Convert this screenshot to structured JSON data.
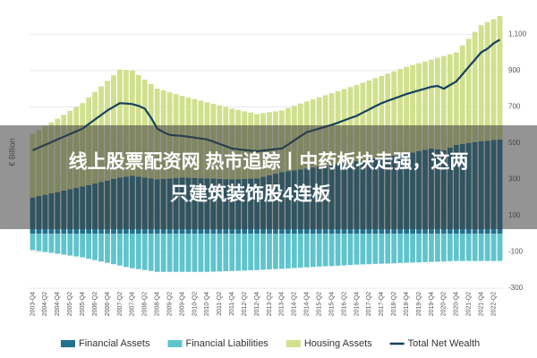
{
  "chart_data": {
    "type": "bar",
    "y_label": "€ Billion",
    "categories": [
      "2003-Q4",
      null,
      "2004-Q2",
      null,
      "2004-Q4",
      null,
      "2005-Q2",
      null,
      "2005-Q4",
      null,
      "2006-Q2",
      null,
      "2006-Q4",
      null,
      "2007-Q2",
      null,
      "2007-Q4",
      null,
      "2008-Q2",
      null,
      "2008-Q4",
      null,
      "2009-Q2",
      null,
      "2009-Q4",
      null,
      "2010-Q2",
      null,
      "2010-Q4",
      null,
      "2011-Q2",
      null,
      "2011-Q4",
      null,
      "2012-Q2",
      null,
      "2012-Q4",
      null,
      "2013-Q2",
      null,
      "2013-Q4",
      null,
      "2014-Q2",
      null,
      "2014-Q4",
      null,
      "2015-Q2",
      null,
      "2015-Q4",
      null,
      "2016-Q2",
      null,
      "2016-Q4",
      null,
      "2017-Q2",
      null,
      "2017-Q4",
      null,
      "2018-Q2",
      null,
      "2018-Q4",
      null,
      "2019-Q2",
      null,
      "2019-Q4",
      null,
      "2020-Q2",
      null,
      "2020-Q4",
      null,
      "2021-Q2",
      null,
      "2021-Q4",
      null,
      "2022-Q2",
      null
    ],
    "series": [
      {
        "name": "Financial Assets",
        "color": "#23718c",
        "stack": "pos",
        "values": [
          200,
          208,
          215,
          223,
          230,
          238,
          245,
          253,
          260,
          268,
          277,
          285,
          293,
          302,
          310,
          315,
          320,
          315,
          310,
          305,
          300,
          303,
          305,
          308,
          310,
          309,
          307,
          306,
          305,
          304,
          303,
          301,
          300,
          301,
          302,
          304,
          305,
          314,
          323,
          331,
          340,
          345,
          350,
          355,
          360,
          365,
          370,
          375,
          380,
          385,
          390,
          395,
          400,
          405,
          410,
          415,
          420,
          425,
          430,
          435,
          440,
          448,
          455,
          463,
          470,
          465,
          460,
          475,
          490,
          495,
          500,
          505,
          510,
          513,
          517,
          520
        ]
      },
      {
        "name": "Financial Liabilities",
        "color": "#5fc4cc",
        "stack": "neg",
        "values": [
          -90,
          -95,
          -100,
          -105,
          -110,
          -115,
          -120,
          -125,
          -130,
          -138,
          -145,
          -153,
          -160,
          -168,
          -175,
          -183,
          -190,
          -195,
          -200,
          -205,
          -210,
          -210,
          -210,
          -210,
          -210,
          -210,
          -210,
          -210,
          -210,
          -209,
          -208,
          -206,
          -205,
          -204,
          -203,
          -201,
          -200,
          -198,
          -196,
          -194,
          -193,
          -191,
          -189,
          -187,
          -185,
          -183,
          -181,
          -179,
          -178,
          -176,
          -174,
          -172,
          -170,
          -169,
          -168,
          -166,
          -165,
          -164,
          -163,
          -161,
          -160,
          -159,
          -158,
          -156,
          -155,
          -154,
          -153,
          -151,
          -150,
          -150,
          -150,
          -150,
          -150,
          -150,
          -150,
          -150
        ]
      },
      {
        "name": "Housing Assets",
        "color": "#d0e08c",
        "stack": "pos",
        "values": [
          350,
          363,
          378,
          391,
          405,
          418,
          433,
          446,
          460,
          483,
          505,
          528,
          550,
          572,
          595,
          588,
          580,
          560,
          540,
          520,
          500,
          487,
          475,
          462,
          450,
          442,
          436,
          428,
          420,
          412,
          405,
          398,
          390,
          382,
          373,
          364,
          355,
          351,
          347,
          344,
          340,
          348,
          355,
          363,
          370,
          376,
          383,
          389,
          395,
          401,
          408,
          414,
          420,
          428,
          435,
          443,
          450,
          458,
          465,
          473,
          480,
          482,
          485,
          487,
          490,
          505,
          520,
          515,
          510,
          543,
          575,
          608,
          640,
          654,
          666,
          680
        ]
      },
      {
        "name": "Total Net Wealth",
        "color": "#17415e",
        "type": "line",
        "values": [
          460,
          475,
          490,
          505,
          520,
          535,
          550,
          565,
          580,
          605,
          630,
          655,
          680,
          700,
          720,
          718,
          715,
          705,
          690,
          640,
          580,
          560,
          545,
          542,
          540,
          535,
          530,
          525,
          520,
          508,
          495,
          483,
          470,
          466,
          462,
          458,
          455,
          459,
          463,
          467,
          470,
          492,
          515,
          538,
          560,
          570,
          580,
          590,
          600,
          612,
          625,
          638,
          650,
          668,
          685,
          703,
          720,
          733,
          745,
          758,
          770,
          780,
          790,
          800,
          810,
          815,
          800,
          820,
          840,
          880,
          920,
          960,
          1000,
          1020,
          1050,
          1070
        ]
      }
    ],
    "ylim": [
      -300,
      1200
    ],
    "yticks": [
      -300,
      -100,
      100,
      300,
      500,
      700,
      900,
      {
        "value": 1100,
        "label": "1,100"
      }
    ],
    "grid": true
  },
  "overlay": {
    "lines": [
      "线上股票配资网 热市追踪丨中药板块走强，这两",
      "只建筑装饰股4连板"
    ]
  }
}
